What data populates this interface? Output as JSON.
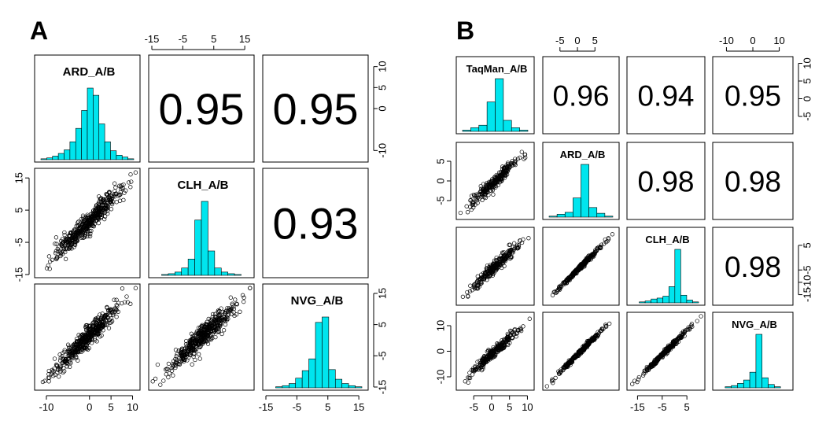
{
  "chart_data": [
    {
      "type": "scatter-matrix",
      "panel_label": "A",
      "variables": [
        "ARD_A/B",
        "CLH_A/B",
        "NVG_A/B"
      ],
      "diagonal": "histogram",
      "upper": "correlation",
      "lower": "scatter",
      "hist_color": "#00e5ee",
      "correlations": [
        {
          "row": 0,
          "col": 1,
          "text": "0.95"
        },
        {
          "row": 0,
          "col": 2,
          "text": "0.95"
        },
        {
          "row": 1,
          "col": 2,
          "text": "0.93"
        }
      ],
      "histograms": [
        {
          "range": [
            -15,
            15
          ],
          "counts": [
            1,
            2,
            4,
            7,
            11,
            20,
            35,
            55,
            80,
            72,
            40,
            20,
            10,
            5,
            3,
            1
          ]
        },
        {
          "range": [
            -15,
            15
          ],
          "counts": [
            0,
            1,
            2,
            4,
            9,
            20,
            68,
            91,
            30,
            9,
            4,
            2,
            1,
            0
          ]
        },
        {
          "range": [
            -15,
            15
          ],
          "counts": [
            0,
            1,
            2,
            4,
            9,
            16,
            27,
            61,
            66,
            17,
            8,
            4,
            2,
            1
          ]
        }
      ],
      "scatter_pairs": [
        {
          "row": 1,
          "col": 0,
          "x_range": [
            -12,
            11
          ],
          "y_range": [
            -15,
            17
          ],
          "slope": 0.95,
          "noise": 3.4,
          "n": 480
        },
        {
          "row": 2,
          "col": 0,
          "x_range": [
            -12,
            11
          ],
          "y_range": [
            -15,
            17
          ],
          "slope": 0.95,
          "noise": 3.4,
          "n": 480
        },
        {
          "row": 2,
          "col": 1,
          "x_range": [
            -15,
            17
          ],
          "y_range": [
            -15,
            17
          ],
          "slope": 0.93,
          "noise": 3.6,
          "n": 480
        }
      ],
      "axes": {
        "top": {
          "col": 1,
          "range": [
            -15,
            17
          ],
          "ticks": [
            -15,
            -5,
            5,
            15
          ]
        },
        "right": {
          "row": 0,
          "range": [
            -12,
            12
          ],
          "ticks": [
            -10,
            0,
            5,
            10
          ]
        },
        "left": {
          "row": 1,
          "range": [
            -15,
            17
          ],
          "ticks": [
            -15,
            -5,
            5,
            15
          ]
        },
        "right2": {
          "row": 2,
          "range": [
            -15,
            17
          ],
          "ticks": [
            -15,
            -5,
            5,
            15
          ]
        },
        "bottom1": {
          "col": 0,
          "range": [
            -12,
            11
          ],
          "ticks": [
            -10,
            0,
            5,
            10
          ]
        },
        "bottom2": {
          "col": 2,
          "range": [
            -15,
            17
          ],
          "ticks": [
            -15,
            -5,
            5,
            15
          ]
        }
      }
    },
    {
      "type": "scatter-matrix",
      "panel_label": "B",
      "variables": [
        "TaqMan_A/B",
        "ARD_A/B",
        "CLH_A/B",
        "NVG_A/B"
      ],
      "diagonal": "histogram",
      "upper": "correlation",
      "lower": "scatter",
      "hist_color": "#00e5ee",
      "correlations": [
        {
          "row": 0,
          "col": 1,
          "text": "0.96"
        },
        {
          "row": 0,
          "col": 2,
          "text": "0.94"
        },
        {
          "row": 0,
          "col": 3,
          "text": "0.95"
        },
        {
          "row": 1,
          "col": 2,
          "text": "0.98"
        },
        {
          "row": 1,
          "col": 3,
          "text": "0.98"
        },
        {
          "row": 2,
          "col": 3,
          "text": "0.98"
        }
      ],
      "histograms": [
        {
          "range": [
            -9,
            11
          ],
          "counts": [
            1,
            3,
            5,
            24,
            43,
            9,
            3,
            1
          ]
        },
        {
          "range": [
            -9,
            11
          ],
          "counts": [
            1,
            3,
            5,
            20,
            55,
            10,
            4,
            1
          ]
        },
        {
          "range": [
            -18,
            11
          ],
          "counts": [
            0,
            1,
            2,
            4,
            5,
            7,
            17,
            56,
            8,
            3,
            1
          ]
        },
        {
          "range": [
            -14,
            14
          ],
          "counts": [
            0,
            1,
            2,
            4,
            7,
            14,
            48,
            9,
            3,
            1,
            0
          ]
        }
      ],
      "scatter_pairs": [
        {
          "row": 1,
          "col": 0,
          "x_range": [
            -9,
            11
          ],
          "y_range": [
            -9,
            9
          ],
          "slope": 0.96,
          "noise": 1.6,
          "n": 260
        },
        {
          "row": 2,
          "col": 0,
          "x_range": [
            -9,
            11
          ],
          "y_range": [
            -18,
            11
          ],
          "slope": 0.94,
          "noise": 2.4,
          "n": 260
        },
        {
          "row": 3,
          "col": 0,
          "x_range": [
            -9,
            11
          ],
          "y_range": [
            -14,
            14
          ],
          "slope": 0.95,
          "noise": 2.2,
          "n": 260
        },
        {
          "row": 2,
          "col": 1,
          "x_range": [
            -9,
            11
          ],
          "y_range": [
            -18,
            11
          ],
          "slope": 0.98,
          "noise": 0.9,
          "n": 260
        },
        {
          "row": 3,
          "col": 1,
          "x_range": [
            -9,
            11
          ],
          "y_range": [
            -14,
            14
          ],
          "slope": 0.98,
          "noise": 0.9,
          "n": 260
        },
        {
          "row": 3,
          "col": 2,
          "x_range": [
            -18,
            11
          ],
          "y_range": [
            -14,
            14
          ],
          "slope": 0.98,
          "noise": 0.9,
          "n": 260
        }
      ],
      "axes": {
        "top1": {
          "col": 1,
          "range": [
            -9,
            11
          ],
          "ticks": [
            -5,
            0,
            5
          ]
        },
        "top2": {
          "col": 3,
          "range": [
            -14,
            14
          ],
          "ticks": [
            -10,
            0,
            10
          ]
        },
        "right1": {
          "row": 0,
          "range": [
            -9,
            11
          ],
          "ticks": [
            -5,
            0,
            5,
            10
          ]
        },
        "right2": {
          "row": 2,
          "range": [
            -18,
            11
          ],
          "ticks": [
            -15,
            -10,
            -5,
            5
          ]
        },
        "left1": {
          "row": 1,
          "range": [
            -9,
            9
          ],
          "ticks": [
            -5,
            0,
            5
          ]
        },
        "left2": {
          "row": 3,
          "range": [
            -14,
            14
          ],
          "ticks": [
            -10,
            0,
            10
          ]
        },
        "bottom1": {
          "col": 0,
          "range": [
            -9,
            11
          ],
          "ticks": [
            -5,
            0,
            5,
            10
          ]
        },
        "bottom2": {
          "col": 2,
          "range": [
            -18,
            11
          ],
          "ticks": [
            -15,
            -5,
            5
          ]
        }
      }
    }
  ]
}
